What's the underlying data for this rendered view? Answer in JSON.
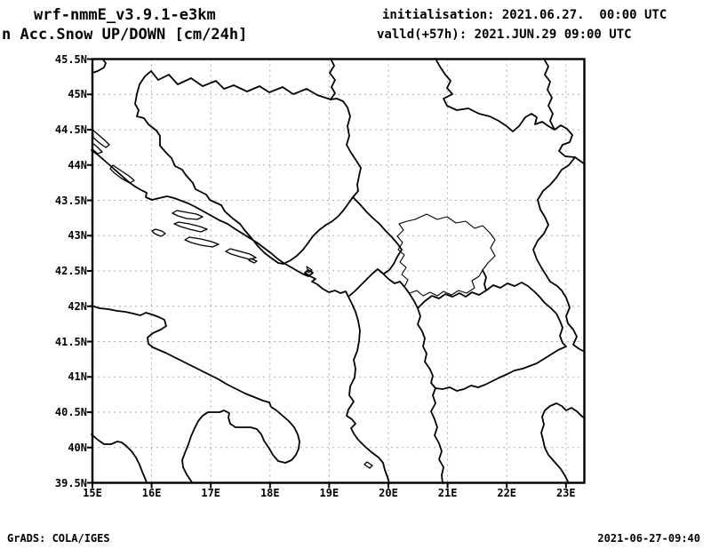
{
  "header": {
    "model": "wrf-nmmE_v3.9.1-e3km",
    "product": "n Acc.Snow UP/DOWN [cm/24h]",
    "init_line": "initialisation: 2021.06.27.  00:00 UTC",
    "valid_line": "valld(+57h): 2021.JUN.29 09:00 UTC"
  },
  "map": {
    "lat_labels": [
      "45.5N",
      "45N",
      "44.5N",
      "44N",
      "43.5N",
      "43N",
      "42.5N",
      "42N",
      "41.5N",
      "41N",
      "40.5N",
      "40N",
      "39.5N"
    ],
    "lon_labels": [
      "15E",
      "16E",
      "17E",
      "18E",
      "19E",
      "20E",
      "21E",
      "22E",
      "23E"
    ]
  },
  "footer": {
    "left": "GrADS: COLA/IGES",
    "right": "2021-06-27-09:40"
  },
  "colors": {
    "line": "#000000",
    "grid": "#ababab",
    "background": "#ffffff"
  }
}
